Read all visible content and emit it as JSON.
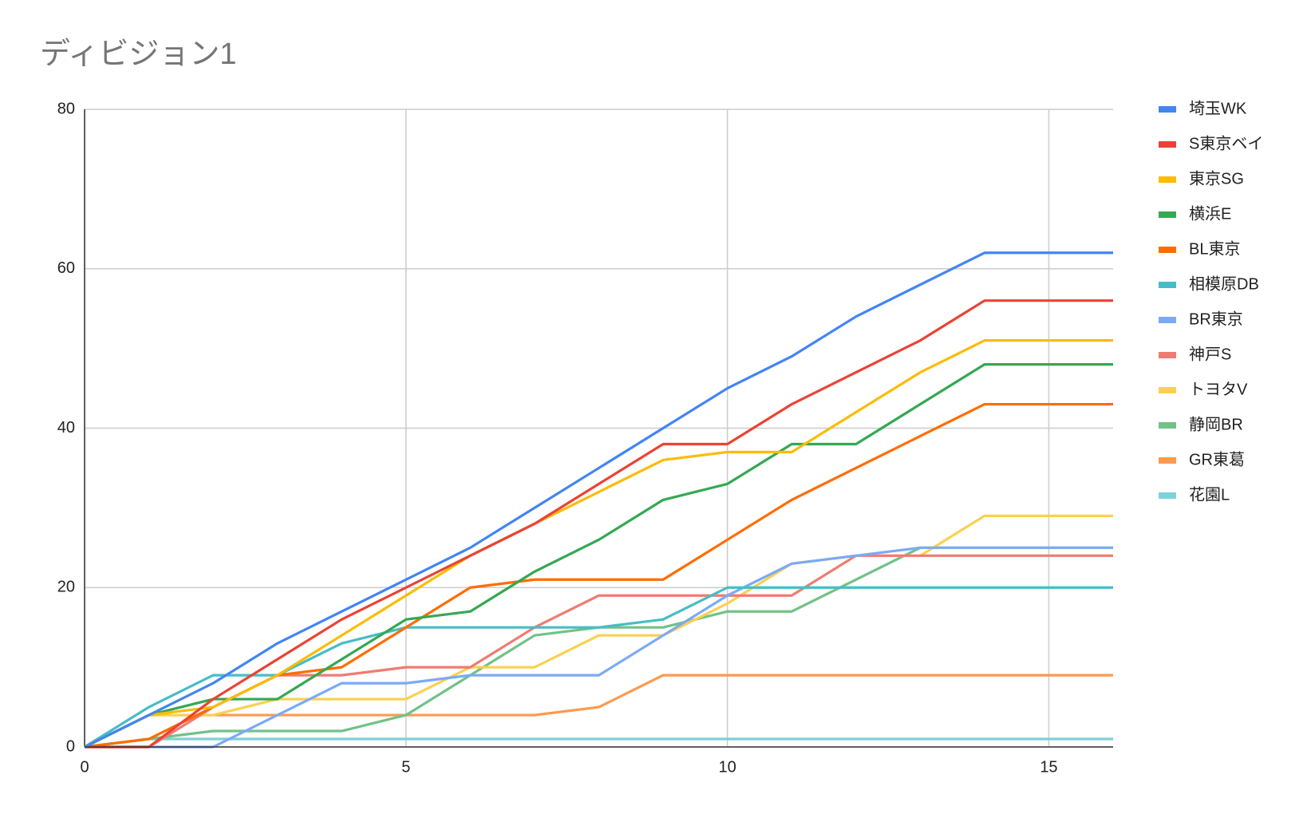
{
  "chart_data": {
    "type": "line",
    "title": "ディビジョン1",
    "x": [
      0,
      1,
      2,
      3,
      4,
      5,
      6,
      7,
      8,
      9,
      10,
      11,
      12,
      13,
      14,
      15,
      16
    ],
    "xlim": [
      0,
      16
    ],
    "xticks": [
      0,
      5,
      10,
      15
    ],
    "ylim": [
      0,
      80
    ],
    "yticks": [
      0,
      20,
      40,
      60,
      80
    ],
    "grid": true,
    "legend": "right",
    "series": [
      {
        "name": "埼玉WK",
        "color": "#4285f4",
        "values": [
          0,
          4,
          8,
          13,
          17,
          21,
          25,
          30,
          35,
          40,
          45,
          49,
          54,
          58,
          62,
          62,
          62
        ]
      },
      {
        "name": "S東京ベイ",
        "color": "#ea4335",
        "values": [
          0,
          0,
          6,
          11,
          16,
          20,
          24,
          28,
          33,
          38,
          38,
          43,
          47,
          51,
          56,
          56,
          56
        ]
      },
      {
        "name": "東京SG",
        "color": "#fbbc04",
        "values": [
          0,
          4,
          5,
          9,
          14,
          19,
          24,
          28,
          32,
          36,
          37,
          37,
          42,
          47,
          51,
          51,
          51
        ]
      },
      {
        "name": "横浜E",
        "color": "#34a853",
        "values": [
          0,
          4,
          6,
          6,
          11,
          16,
          17,
          22,
          26,
          31,
          33,
          38,
          38,
          43,
          48,
          48,
          48
        ]
      },
      {
        "name": "BL東京",
        "color": "#ff6d01",
        "values": [
          0,
          1,
          5,
          9,
          10,
          15,
          20,
          21,
          21,
          21,
          26,
          31,
          35,
          39,
          43,
          43,
          43
        ]
      },
      {
        "name": "相模原DB",
        "color": "#46bdc6",
        "values": [
          0,
          5,
          9,
          9,
          13,
          15,
          15,
          15,
          15,
          16,
          20,
          20,
          20,
          20,
          20,
          20,
          20
        ]
      },
      {
        "name": "BR東京",
        "color": "#7baaf7",
        "values": [
          0,
          0,
          0,
          4,
          8,
          8,
          9,
          9,
          9,
          14,
          19,
          23,
          24,
          25,
          25,
          25,
          25
        ]
      },
      {
        "name": "神戸S",
        "color": "#f07b72",
        "values": [
          0,
          0,
          5,
          9,
          9,
          10,
          10,
          15,
          19,
          19,
          19,
          19,
          24,
          24,
          24,
          24,
          24
        ]
      },
      {
        "name": "トヨタV",
        "color": "#fcd04f",
        "values": [
          0,
          4,
          4,
          6,
          6,
          6,
          10,
          10,
          14,
          14,
          18,
          23,
          24,
          24,
          29,
          29,
          29
        ]
      },
      {
        "name": "静岡BR",
        "color": "#71c287",
        "values": [
          0,
          1,
          2,
          2,
          2,
          4,
          9,
          14,
          15,
          15,
          17,
          17,
          21,
          25,
          25,
          25,
          25
        ]
      },
      {
        "name": "GR東葛",
        "color": "#ff994d",
        "values": [
          0,
          4,
          4,
          4,
          4,
          4,
          4,
          4,
          5,
          9,
          9,
          9,
          9,
          9,
          9,
          9,
          9
        ]
      },
      {
        "name": "花園L",
        "color": "#7ed1d7",
        "values": [
          0,
          1,
          1,
          1,
          1,
          1,
          1,
          1,
          1,
          1,
          1,
          1,
          1,
          1,
          1,
          1,
          1
        ]
      }
    ]
  }
}
